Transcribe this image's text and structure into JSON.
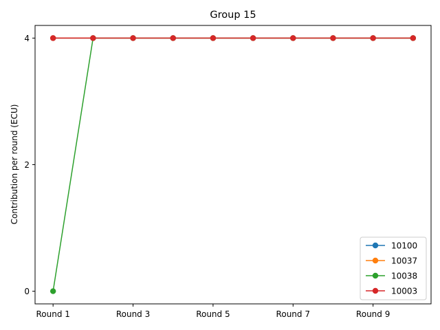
{
  "chart_data": {
    "type": "line",
    "title": "Group 15",
    "xlabel": "",
    "ylabel": "Contribution per round (ECU)",
    "categories": [
      "Round 1",
      "Round 2",
      "Round 3",
      "Round 4",
      "Round 5",
      "Round 6",
      "Round 7",
      "Round 8",
      "Round 9",
      "Round 10"
    ],
    "x_tick_labels": [
      "Round 1",
      "Round 3",
      "Round 5",
      "Round 7",
      "Round 9"
    ],
    "y_ticks": [
      0,
      2,
      4
    ],
    "ylim": [
      -0.2,
      4.2
    ],
    "legend_position": "lower-right",
    "grid": false,
    "series": [
      {
        "name": "10100",
        "color": "#1f77b4",
        "values": [
          4,
          4,
          4,
          4,
          4,
          4,
          4,
          4,
          4,
          4
        ]
      },
      {
        "name": "10037",
        "color": "#ff7f0e",
        "values": [
          4,
          4,
          4,
          4,
          4,
          4,
          4,
          4,
          4,
          4
        ]
      },
      {
        "name": "10038",
        "color": "#2ca02c",
        "values": [
          0,
          4,
          4,
          4,
          4,
          4,
          4,
          4,
          4,
          4
        ]
      },
      {
        "name": "10003",
        "color": "#d62728",
        "values": [
          4,
          4,
          4,
          4,
          4,
          4,
          4,
          4,
          4,
          4
        ]
      }
    ]
  }
}
